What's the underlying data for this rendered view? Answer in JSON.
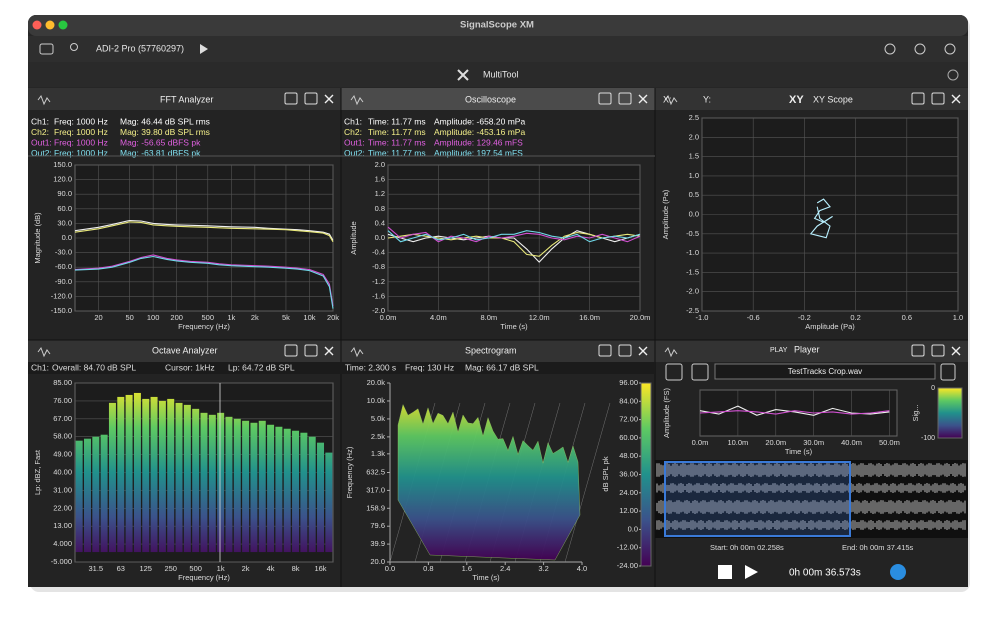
{
  "window": {
    "title": "SignalScope XM",
    "device": "ADI-2 Pro (57760297)",
    "tool": "MultiTool"
  },
  "panels": {
    "fft": {
      "title": "FFT Analyzer",
      "info": [
        {
          "label": "Ch1:",
          "cols": [
            "Freq: 1000 Hz",
            "Mag: 46.44 dB SPL rms"
          ],
          "color": "#ffffff"
        },
        {
          "label": "Ch2:",
          "cols": [
            "Freq: 1000 Hz",
            "Mag: 39.80 dB SPL rms"
          ],
          "color": "#f4f08a"
        },
        {
          "label": "Out1:",
          "cols": [
            "Freq: 1000 Hz",
            "Mag: -56.65 dBFS pk"
          ],
          "color": "#e060e0"
        },
        {
          "label": "Out2:",
          "cols": [
            "Freq: 1000 Hz",
            "Mag: -63.81 dBFS pk"
          ],
          "color": "#80e0f0"
        }
      ]
    },
    "scope": {
      "title": "Oscilloscope",
      "info": [
        {
          "label": "Ch1:",
          "cols": [
            "Time: 11.77 ms",
            "Amplitude: -658.20 mPa"
          ],
          "color": "#ffffff"
        },
        {
          "label": "Ch2:",
          "cols": [
            "Time: 11.77 ms",
            "Amplitude: -453.16 mPa"
          ],
          "color": "#f4f08a"
        },
        {
          "label": "Out1:",
          "cols": [
            "Time: 11.77 ms",
            "Amplitude: 129.46 mFS"
          ],
          "color": "#e060e0"
        },
        {
          "label": "Out2:",
          "cols": [
            "Time: 11.77 ms",
            "Amplitude: 197.54 mFS"
          ],
          "color": "#80e0f0"
        }
      ]
    },
    "xy": {
      "title": "XY Scope",
      "icon": "XY",
      "x_label": "X:",
      "y_label": "Y:"
    },
    "octave": {
      "title": "Octave Analyzer",
      "info": [
        "Ch1:",
        "Overall: 84.70 dB SPL",
        "Cursor: 1kHz",
        "Lp: 64.72 dB SPL"
      ]
    },
    "spectrogram": {
      "title": "Spectrogram",
      "info": [
        "Time: 2.300 s",
        "Freq: 130 Hz",
        "Mag: 66.17 dB SPL"
      ]
    },
    "player": {
      "play_label": "PLAY",
      "title": "Player",
      "file": "TestTracks Crop.wav",
      "start": "Start: 0h 00m 02.258s",
      "end": "End: 0h 00m 37.415s",
      "position": "0h 00m 36.573s"
    }
  },
  "chart_data": [
    {
      "type": "line",
      "ylabel": "Magnitude (dB)",
      "xlabel": "Frequency (Hz)",
      "xscale": "log",
      "grid": true,
      "xlim": [
        10,
        20000
      ],
      "ylim": [
        -150,
        150
      ],
      "yticks": [
        {
          "value": 150,
          "label": "150.0"
        },
        {
          "value": 120,
          "label": "120.0"
        },
        {
          "value": 90,
          "label": "90.0"
        },
        {
          "value": 60,
          "label": "60.0"
        },
        {
          "value": 30,
          "label": "30.0"
        },
        {
          "value": 0,
          "label": "0.0"
        },
        {
          "value": -30,
          "label": "-30.0"
        },
        {
          "value": -60,
          "label": "-60.0"
        },
        {
          "value": -90,
          "label": "-90.0"
        },
        {
          "value": -120,
          "label": "-120.0"
        },
        {
          "value": -150,
          "label": "-150.0"
        }
      ],
      "xticks": [
        20,
        50,
        100,
        200,
        500,
        {
          "value": 1000,
          "label": "1k"
        },
        {
          "value": 2000,
          "label": "2k"
        },
        {
          "value": 5000,
          "label": "5k"
        },
        {
          "value": 10000,
          "label": "10k"
        },
        {
          "value": 20000,
          "label": "20k"
        }
      ],
      "x": [
        10,
        20,
        30,
        50,
        70,
        100,
        150,
        200,
        300,
        500,
        700,
        1000,
        2000,
        3000,
        5000,
        7000,
        10000,
        15000,
        18000,
        20000
      ],
      "series": [
        {
          "color": "#f0f0f0",
          "values": [
            15,
            22,
            28,
            36,
            35,
            30,
            28,
            27,
            26,
            25,
            24,
            23,
            22,
            20,
            18,
            17,
            15,
            12,
            8,
            -5
          ]
        },
        {
          "color": "#e8e87a",
          "values": [
            12,
            19,
            25,
            33,
            32,
            27,
            25,
            24,
            23,
            22,
            21,
            20,
            19,
            18,
            17,
            15,
            13,
            10,
            5,
            -8
          ]
        },
        {
          "color": "#d050d0",
          "values": [
            -65,
            -62,
            -58,
            -48,
            -40,
            -35,
            -42,
            -45,
            -48,
            -50,
            -53,
            -55,
            -57,
            -58,
            -60,
            -62,
            -65,
            -75,
            -95,
            -140
          ]
        },
        {
          "color": "#70d8e8",
          "values": [
            -66,
            -64,
            -60,
            -50,
            -42,
            -38,
            -44,
            -47,
            -50,
            -52,
            -55,
            -57,
            -59,
            -60,
            -62,
            -64,
            -67,
            -78,
            -100,
            -145
          ]
        }
      ]
    },
    {
      "type": "line",
      "ylabel": "Amplitude",
      "xlabel": "Time (s)",
      "grid": true,
      "xlim": [
        0,
        20
      ],
      "ylim": [
        -2,
        2
      ],
      "yticks": [
        {
          "value": 2,
          "label": "2.0"
        },
        {
          "value": 1.6,
          "label": "1.6"
        },
        {
          "value": 1.2,
          "label": "1.2"
        },
        {
          "value": 0.8,
          "label": "0.8"
        },
        {
          "value": 0.4,
          "label": "0.4"
        },
        {
          "value": 0,
          "label": "0.0"
        },
        {
          "value": -0.4,
          "label": "-0.4"
        },
        {
          "value": -0.8,
          "label": "-0.8"
        },
        {
          "value": -1.2,
          "label": "-1.2"
        },
        {
          "value": -1.6,
          "label": "-1.6"
        },
        {
          "value": -2,
          "label": "-2.0"
        }
      ],
      "xticks": [
        {
          "value": 0,
          "label": "0.0m"
        },
        {
          "value": 4,
          "label": "4.0m"
        },
        {
          "value": 8,
          "label": "8.0m"
        },
        {
          "value": 12,
          "label": "12.0m"
        },
        {
          "value": 16,
          "label": "16.0m"
        },
        {
          "value": 20,
          "label": "20.0m"
        }
      ],
      "x": [
        0,
        1,
        2,
        3,
        4,
        5,
        6,
        7,
        8,
        9,
        10,
        11,
        12,
        13,
        14,
        15,
        16,
        17,
        18,
        19,
        20
      ],
      "series": [
        {
          "color": "#f0f0f0",
          "values": [
            0.1,
            0,
            -0.1,
            0,
            0.05,
            0,
            -0.05,
            0,
            0.05,
            0,
            0,
            -0.3,
            -0.66,
            -0.3,
            0,
            0.2,
            0.1,
            0,
            -0.1,
            0,
            0.1
          ]
        },
        {
          "color": "#e8e87a",
          "values": [
            0,
            0.05,
            0.1,
            0.05,
            0,
            -0.05,
            0,
            0.05,
            0,
            0,
            -0.1,
            -0.45,
            -0.5,
            -0.2,
            0.05,
            0.15,
            0.1,
            0,
            0.05,
            0.1,
            0.05
          ]
        },
        {
          "color": "#d050d0",
          "values": [
            0.3,
            0,
            0.1,
            0.15,
            -0.1,
            0.05,
            0,
            -0.1,
            0.05,
            0,
            0.05,
            0.13,
            0.1,
            0,
            -0.05,
            0.05,
            0,
            0.1,
            0,
            -0.1,
            0.05
          ]
        },
        {
          "color": "#70d8e8",
          "values": [
            0.2,
            -0.1,
            0,
            0.1,
            -0.05,
            0,
            0.1,
            -0.05,
            0,
            0.1,
            0.1,
            0.2,
            0.15,
            0.05,
            0,
            0.1,
            -0.1,
            0,
            0.05,
            0,
            0.1
          ]
        }
      ]
    },
    {
      "type": "line",
      "ylabel": "Amplitude (Pa)",
      "xlabel": "Amplitude (Pa)",
      "grid": true,
      "xlim": [
        -1,
        1
      ],
      "ylim": [
        -2.5,
        2.5
      ],
      "yticks": [
        2.5,
        {
          "value": 2,
          "label": "2.0"
        },
        1.5,
        {
          "value": 1,
          "label": "1.0"
        },
        0.5,
        {
          "value": 0,
          "label": "0.0"
        },
        -0.5,
        {
          "value": -1,
          "label": "-1.0"
        },
        -1.5,
        {
          "value": -2,
          "label": "-2.0"
        },
        -2.5
      ],
      "xticks": [
        {
          "value": -1,
          "label": "-1.0"
        },
        -0.6,
        -0.2,
        0.2,
        0.6,
        {
          "value": 1,
          "label": "1.0"
        }
      ],
      "series": [
        {
          "color": "#b8f0ff",
          "x": [
            -0.1,
            -0.05,
            0,
            -0.08,
            -0.12,
            -0.05,
            0.02,
            -0.1,
            -0.15,
            -0.03,
            0,
            -0.08,
            -0.1
          ],
          "values": [
            0.3,
            0.4,
            0.2,
            0.1,
            -0.1,
            -0.2,
            -0.05,
            -0.3,
            -0.5,
            -0.6,
            -0.3,
            -0.1,
            0.2
          ]
        }
      ]
    },
    {
      "type": "bar",
      "ylabel": "Lp: dBZ, Fast",
      "xlabel": "Frequency (Hz)",
      "grid": true,
      "ylim": [
        -5,
        85
      ],
      "yticks": [
        {
          "value": 85,
          "label": "85.00"
        },
        {
          "value": 76,
          "label": "76.00"
        },
        {
          "value": 67,
          "label": "67.00"
        },
        {
          "value": 58,
          "label": "58.00"
        },
        {
          "value": 49,
          "label": "49.00"
        },
        {
          "value": 40,
          "label": "40.00"
        },
        {
          "value": 31,
          "label": "31.00"
        },
        {
          "value": 22,
          "label": "22.00"
        },
        {
          "value": 13,
          "label": "13.00"
        },
        {
          "value": 4,
          "label": "4.000"
        },
        {
          "value": -5,
          "label": "-5.000"
        }
      ],
      "categories": [
        null,
        null,
        "31.5",
        null,
        null,
        "63",
        null,
        null,
        "125",
        null,
        null,
        "250",
        null,
        null,
        "500",
        null,
        null,
        "1k",
        null,
        null,
        "2k",
        null,
        null,
        "4k",
        null,
        null,
        "8k",
        null,
        null,
        "16k",
        null
      ],
      "values": [
        56,
        57,
        58,
        59,
        75,
        78,
        79,
        80,
        77,
        78,
        76,
        77,
        75,
        74,
        72,
        70,
        69,
        70,
        68,
        67,
        66,
        65,
        66,
        64,
        63,
        62,
        61,
        60,
        58,
        55,
        50
      ],
      "gradient": [
        "#fde725",
        "#5ec962",
        "#21918c",
        "#3b528b",
        "#440154"
      ]
    },
    {
      "type": "waterfall",
      "ylabel": "Frequency (Hz)",
      "xlabel": "Time (s)",
      "yscale": "log",
      "xlim": [
        0,
        4
      ],
      "ylim": [
        20,
        20000
      ],
      "yticks": [
        {
          "value": 20000,
          "label": "20.0k"
        },
        {
          "value": 10000,
          "label": "10.0k"
        },
        {
          "value": 5000,
          "label": "5.0k"
        },
        {
          "value": 2500,
          "label": "2.5k"
        },
        {
          "value": 1300,
          "label": "1.3k"
        },
        632.5,
        {
          "value": 317,
          "label": "317.0"
        },
        158.9,
        79.6,
        39.9,
        {
          "value": 20,
          "label": "20.0"
        }
      ],
      "xticks": [
        {
          "value": 0,
          "label": "0.0"
        },
        0.8,
        1.6,
        2.4,
        3.2,
        {
          "value": 4,
          "label": "4.0"
        }
      ],
      "zlabel": "dB SPL pk",
      "zlim": [
        -24,
        96
      ],
      "zticks": [
        {
          "value": 96,
          "label": "96.00"
        },
        {
          "value": 84,
          "label": "84.00"
        },
        {
          "value": 72,
          "label": "72.00"
        },
        {
          "value": 60,
          "label": "60.00"
        },
        {
          "value": 48,
          "label": "48.00"
        },
        {
          "value": 36,
          "label": "36.00"
        },
        {
          "value": 24,
          "label": "24.00"
        },
        {
          "value": 12,
          "label": "12.00"
        },
        {
          "value": 0,
          "label": "0.0"
        },
        {
          "value": -12,
          "label": "-12.00"
        },
        {
          "value": -24,
          "label": "-24.00"
        }
      ],
      "gradient": [
        "#fde725",
        "#5ec962",
        "#21918c",
        "#3b528b",
        "#440154"
      ]
    },
    {
      "type": "line",
      "ylabel": "Amplitude (FS)",
      "xlabel": "Time (s)",
      "grid": true,
      "xlim": [
        0,
        52
      ],
      "ylim": [
        -1,
        1
      ],
      "xticks": [
        {
          "value": 0,
          "label": "0.0m"
        },
        {
          "value": 10,
          "label": "10.0m"
        },
        {
          "value": 20,
          "label": "20.0m"
        },
        {
          "value": 30,
          "label": "30.0m"
        },
        {
          "value": 40,
          "label": "40.0m"
        },
        {
          "value": 50,
          "label": "50.0m"
        }
      ],
      "x": [
        0,
        5,
        10,
        15,
        20,
        25,
        30,
        35,
        40,
        45,
        50
      ],
      "series": [
        {
          "color": "#f0f0f0",
          "values": [
            0.1,
            -0.05,
            0.3,
            -0.1,
            0.15,
            0.05,
            -0.1,
            0.2,
            0,
            -0.05,
            0.05
          ]
        },
        {
          "color": "#d050d0",
          "values": [
            0,
            0.05,
            0.1,
            0.05,
            -0.05,
            0.1,
            0,
            0.05,
            -0.05,
            0,
            0.1
          ]
        }
      ],
      "meter_label": "Sig...",
      "meter_lim": [
        -100,
        0
      ],
      "meter_ticks": [
        0,
        -100
      ]
    }
  ]
}
